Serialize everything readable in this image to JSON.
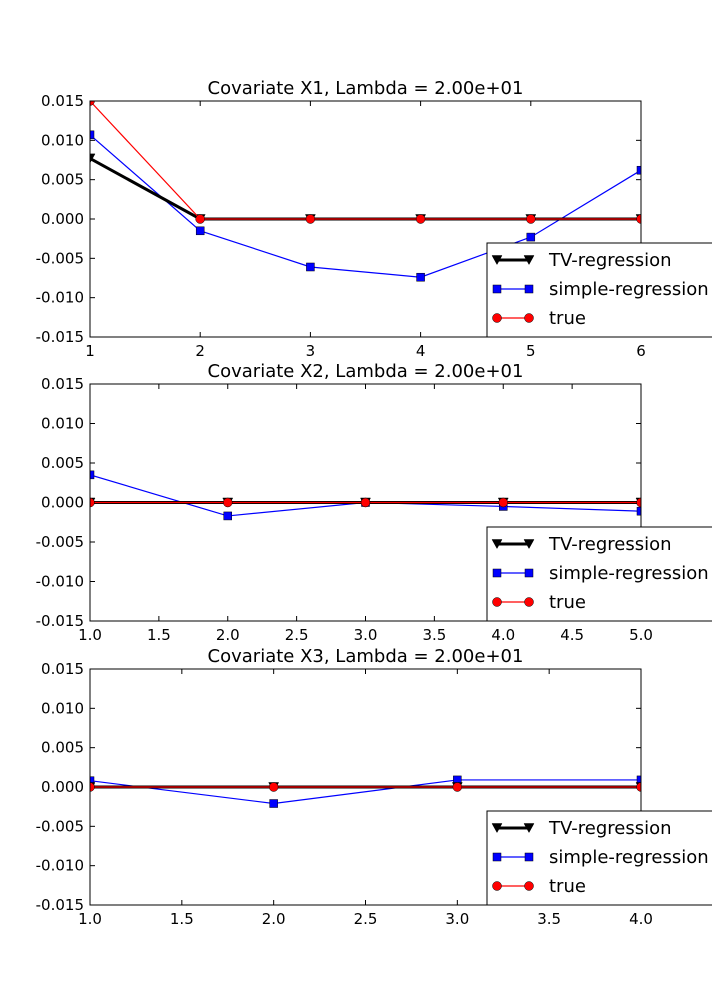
{
  "chart_data": [
    {
      "type": "line",
      "title": "Covariate X1, Lambda = 2.00e+01",
      "xlim": [
        1,
        6
      ],
      "ylim": [
        -0.015,
        0.015
      ],
      "xticks": [
        "1",
        "2",
        "3",
        "4",
        "5",
        "6"
      ],
      "yticks": [
        "0.015",
        "0.010",
        "0.005",
        "0.000",
        "-0.005",
        "-0.010",
        "-0.015"
      ],
      "legend_position": "lower-right",
      "series": [
        {
          "name": "TV-regression",
          "color": "#000000",
          "marker": "triangle-down",
          "x": [
            1,
            2,
            3,
            4,
            5,
            6
          ],
          "y": [
            0.0077,
            0.0,
            0.0,
            0.0,
            0.0,
            0.0
          ]
        },
        {
          "name": "simple-regression",
          "color": "#0000ff",
          "marker": "square",
          "x": [
            1,
            2,
            3,
            4,
            5,
            6
          ],
          "y": [
            0.0107,
            -0.0015,
            -0.0061,
            -0.0074,
            -0.0023,
            0.0062
          ]
        },
        {
          "name": "true",
          "color": "#ff0000",
          "marker": "circle",
          "x": [
            1,
            2,
            3,
            4,
            5,
            6
          ],
          "y": [
            0.015,
            0.0,
            0.0,
            0.0,
            0.0,
            0.0
          ]
        }
      ]
    },
    {
      "type": "line",
      "title": "Covariate X2, Lambda = 2.00e+01",
      "xlim": [
        1,
        5
      ],
      "ylim": [
        -0.015,
        0.015
      ],
      "xticks": [
        "1.0",
        "1.5",
        "2.0",
        "2.5",
        "3.0",
        "3.5",
        "4.0",
        "4.5",
        "5.0"
      ],
      "yticks": [
        "0.015",
        "0.010",
        "0.005",
        "0.000",
        "-0.005",
        "-0.010",
        "-0.015"
      ],
      "legend_position": "lower-right",
      "series": [
        {
          "name": "TV-regression",
          "color": "#000000",
          "marker": "triangle-down",
          "x": [
            1,
            2,
            3,
            4,
            5
          ],
          "y": [
            0.0,
            0.0,
            0.0,
            0.0,
            0.0
          ]
        },
        {
          "name": "simple-regression",
          "color": "#0000ff",
          "marker": "square",
          "x": [
            1,
            2,
            3,
            4,
            5
          ],
          "y": [
            0.0035,
            -0.0017,
            0.0,
            -0.0005,
            -0.0011
          ]
        },
        {
          "name": "true",
          "color": "#ff0000",
          "marker": "circle",
          "x": [
            1,
            2,
            3,
            4,
            5
          ],
          "y": [
            0.0,
            0.0,
            0.0,
            0.0,
            0.0
          ]
        }
      ]
    },
    {
      "type": "line",
      "title": "Covariate X3, Lambda = 2.00e+01",
      "xlim": [
        1,
        4
      ],
      "ylim": [
        -0.015,
        0.015
      ],
      "xticks": [
        "1.0",
        "1.5",
        "2.0",
        "2.5",
        "3.0",
        "3.5",
        "4.0"
      ],
      "yticks": [
        "0.015",
        "0.010",
        "0.005",
        "0.000",
        "-0.005",
        "-0.010",
        "-0.015"
      ],
      "legend_position": "lower-right",
      "series": [
        {
          "name": "TV-regression",
          "color": "#000000",
          "marker": "triangle-down",
          "x": [
            1,
            2,
            3,
            4
          ],
          "y": [
            0.0,
            0.0,
            0.0,
            0.0
          ]
        },
        {
          "name": "simple-regression",
          "color": "#0000ff",
          "marker": "square",
          "x": [
            1,
            2,
            3,
            4
          ],
          "y": [
            0.0008,
            -0.0021,
            0.0009,
            0.0009
          ]
        },
        {
          "name": "true",
          "color": "#ff0000",
          "marker": "circle",
          "x": [
            1,
            2,
            3,
            4
          ],
          "y": [
            0.0,
            0.0,
            0.0,
            0.0
          ]
        }
      ]
    }
  ]
}
